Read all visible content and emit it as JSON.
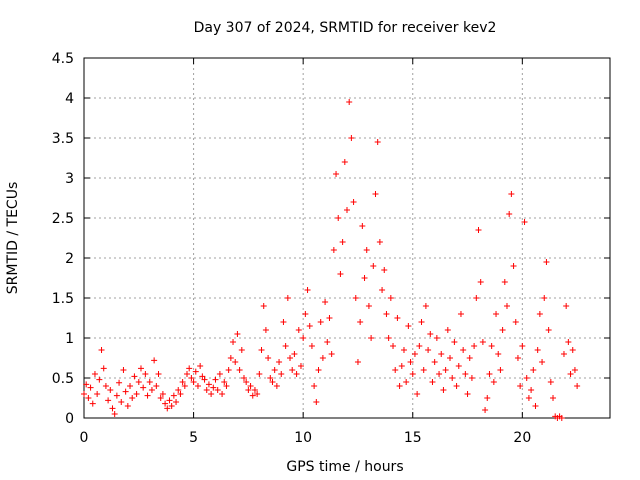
{
  "chart_data": {
    "type": "scatter",
    "title": "Day 307 of 2024, SRMTID for receiver kev2",
    "xlabel": "GPS time / hours",
    "ylabel": "SRMTID / TECUs",
    "xlim": [
      0,
      24
    ],
    "ylim": [
      0,
      4.5
    ],
    "xticks": [
      "0",
      "5",
      "10",
      "15",
      "20"
    ],
    "yticks": [
      "0",
      "0.5",
      "1",
      "1.5",
      "2",
      "2.5",
      "3",
      "3.5",
      "4",
      "4.5"
    ],
    "grid": true,
    "marker": "+",
    "color": "#ff0000",
    "series": [
      {
        "name": "SRMTID",
        "points": [
          [
            0.0,
            0.3
          ],
          [
            0.1,
            0.42
          ],
          [
            0.2,
            0.25
          ],
          [
            0.3,
            0.38
          ],
          [
            0.4,
            0.18
          ],
          [
            0.5,
            0.55
          ],
          [
            0.6,
            0.3
          ],
          [
            0.7,
            0.48
          ],
          [
            0.8,
            0.85
          ],
          [
            0.9,
            0.62
          ],
          [
            1.0,
            0.4
          ],
          [
            1.1,
            0.22
          ],
          [
            1.2,
            0.35
          ],
          [
            1.3,
            0.12
          ],
          [
            1.4,
            0.05
          ],
          [
            1.5,
            0.28
          ],
          [
            1.6,
            0.44
          ],
          [
            1.7,
            0.2
          ],
          [
            1.8,
            0.6
          ],
          [
            1.9,
            0.33
          ],
          [
            2.0,
            0.15
          ],
          [
            2.1,
            0.4
          ],
          [
            2.2,
            0.25
          ],
          [
            2.3,
            0.52
          ],
          [
            2.4,
            0.3
          ],
          [
            2.5,
            0.45
          ],
          [
            2.6,
            0.62
          ],
          [
            2.7,
            0.38
          ],
          [
            2.8,
            0.55
          ],
          [
            2.9,
            0.28
          ],
          [
            3.0,
            0.45
          ],
          [
            3.1,
            0.35
          ],
          [
            3.2,
            0.72
          ],
          [
            3.3,
            0.4
          ],
          [
            3.4,
            0.55
          ],
          [
            3.5,
            0.25
          ],
          [
            3.6,
            0.3
          ],
          [
            3.7,
            0.18
          ],
          [
            3.8,
            0.12
          ],
          [
            3.9,
            0.22
          ],
          [
            4.0,
            0.15
          ],
          [
            4.1,
            0.28
          ],
          [
            4.2,
            0.2
          ],
          [
            4.3,
            0.35
          ],
          [
            4.4,
            0.3
          ],
          [
            4.5,
            0.45
          ],
          [
            4.6,
            0.4
          ],
          [
            4.7,
            0.55
          ],
          [
            4.8,
            0.62
          ],
          [
            4.9,
            0.5
          ],
          [
            5.0,
            0.45
          ],
          [
            5.1,
            0.58
          ],
          [
            5.2,
            0.4
          ],
          [
            5.3,
            0.65
          ],
          [
            5.4,
            0.52
          ],
          [
            5.5,
            0.48
          ],
          [
            5.6,
            0.35
          ],
          [
            5.7,
            0.42
          ],
          [
            5.8,
            0.3
          ],
          [
            5.9,
            0.38
          ],
          [
            6.0,
            0.48
          ],
          [
            6.1,
            0.35
          ],
          [
            6.2,
            0.55
          ],
          [
            6.3,
            0.3
          ],
          [
            6.4,
            0.45
          ],
          [
            6.5,
            0.4
          ],
          [
            6.6,
            0.6
          ],
          [
            6.7,
            0.75
          ],
          [
            6.8,
            0.95
          ],
          [
            6.9,
            0.7
          ],
          [
            7.0,
            1.05
          ],
          [
            7.1,
            0.6
          ],
          [
            7.2,
            0.85
          ],
          [
            7.3,
            0.5
          ],
          [
            7.4,
            0.45
          ],
          [
            7.5,
            0.35
          ],
          [
            7.6,
            0.4
          ],
          [
            7.7,
            0.28
          ],
          [
            7.8,
            0.35
          ],
          [
            7.9,
            0.3
          ],
          [
            8.0,
            0.55
          ],
          [
            8.1,
            0.85
          ],
          [
            8.2,
            1.4
          ],
          [
            8.3,
            1.1
          ],
          [
            8.4,
            0.75
          ],
          [
            8.5,
            0.5
          ],
          [
            8.6,
            0.45
          ],
          [
            8.7,
            0.6
          ],
          [
            8.8,
            0.4
          ],
          [
            8.9,
            0.7
          ],
          [
            9.0,
            0.55
          ],
          [
            9.1,
            1.2
          ],
          [
            9.2,
            0.9
          ],
          [
            9.3,
            1.5
          ],
          [
            9.4,
            0.75
          ],
          [
            9.5,
            0.6
          ],
          [
            9.6,
            0.8
          ],
          [
            9.7,
            0.55
          ],
          [
            9.8,
            1.1
          ],
          [
            9.9,
            0.65
          ],
          [
            10.0,
            1.0
          ],
          [
            10.1,
            1.3
          ],
          [
            10.2,
            1.6
          ],
          [
            10.3,
            1.15
          ],
          [
            10.4,
            0.9
          ],
          [
            10.5,
            0.4
          ],
          [
            10.6,
            0.2
          ],
          [
            10.7,
            0.6
          ],
          [
            10.8,
            1.2
          ],
          [
            10.9,
            0.75
          ],
          [
            11.0,
            1.45
          ],
          [
            11.1,
            0.95
          ],
          [
            11.2,
            1.25
          ],
          [
            11.3,
            0.8
          ],
          [
            11.4,
            2.1
          ],
          [
            11.5,
            3.05
          ],
          [
            11.6,
            2.5
          ],
          [
            11.7,
            1.8
          ],
          [
            11.8,
            2.2
          ],
          [
            11.9,
            3.2
          ],
          [
            12.0,
            2.6
          ],
          [
            12.1,
            3.95
          ],
          [
            12.2,
            3.5
          ],
          [
            12.3,
            2.7
          ],
          [
            12.4,
            1.5
          ],
          [
            12.5,
            0.7
          ],
          [
            12.6,
            1.2
          ],
          [
            12.7,
            2.4
          ],
          [
            12.8,
            1.75
          ],
          [
            12.9,
            2.1
          ],
          [
            13.0,
            1.4
          ],
          [
            13.1,
            1.0
          ],
          [
            13.2,
            1.9
          ],
          [
            13.3,
            2.8
          ],
          [
            13.4,
            3.45
          ],
          [
            13.5,
            2.2
          ],
          [
            13.6,
            1.6
          ],
          [
            13.7,
            1.85
          ],
          [
            13.8,
            1.3
          ],
          [
            13.9,
            1.0
          ],
          [
            14.0,
            1.5
          ],
          [
            14.1,
            0.9
          ],
          [
            14.2,
            0.6
          ],
          [
            14.3,
            1.25
          ],
          [
            14.4,
            0.4
          ],
          [
            14.5,
            0.65
          ],
          [
            14.6,
            0.85
          ],
          [
            14.7,
            0.45
          ],
          [
            14.8,
            1.15
          ],
          [
            14.9,
            0.7
          ],
          [
            15.0,
            0.55
          ],
          [
            15.1,
            0.8
          ],
          [
            15.2,
            0.3
          ],
          [
            15.3,
            0.9
          ],
          [
            15.4,
            1.2
          ],
          [
            15.5,
            0.6
          ],
          [
            15.6,
            1.4
          ],
          [
            15.7,
            0.85
          ],
          [
            15.8,
            1.05
          ],
          [
            15.9,
            0.45
          ],
          [
            16.0,
            0.7
          ],
          [
            16.1,
            1.0
          ],
          [
            16.2,
            0.55
          ],
          [
            16.3,
            0.8
          ],
          [
            16.4,
            0.35
          ],
          [
            16.5,
            0.6
          ],
          [
            16.6,
            1.1
          ],
          [
            16.7,
            0.75
          ],
          [
            16.8,
            0.5
          ],
          [
            16.9,
            0.95
          ],
          [
            17.0,
            0.4
          ],
          [
            17.1,
            0.65
          ],
          [
            17.2,
            1.3
          ],
          [
            17.3,
            0.85
          ],
          [
            17.4,
            0.55
          ],
          [
            17.5,
            0.3
          ],
          [
            17.6,
            0.75
          ],
          [
            17.7,
            0.5
          ],
          [
            17.8,
            0.9
          ],
          [
            17.9,
            1.5
          ],
          [
            18.0,
            2.35
          ],
          [
            18.1,
            1.7
          ],
          [
            18.2,
            0.95
          ],
          [
            18.3,
            0.1
          ],
          [
            18.4,
            0.25
          ],
          [
            18.5,
            0.55
          ],
          [
            18.6,
            0.9
          ],
          [
            18.7,
            0.45
          ],
          [
            18.8,
            1.3
          ],
          [
            18.9,
            0.8
          ],
          [
            19.0,
            0.6
          ],
          [
            19.1,
            1.1
          ],
          [
            19.2,
            1.7
          ],
          [
            19.3,
            1.4
          ],
          [
            19.4,
            2.55
          ],
          [
            19.5,
            2.8
          ],
          [
            19.6,
            1.9
          ],
          [
            19.7,
            1.2
          ],
          [
            19.8,
            0.75
          ],
          [
            19.9,
            0.4
          ],
          [
            20.0,
            0.9
          ],
          [
            20.1,
            2.45
          ],
          [
            20.2,
            0.5
          ],
          [
            20.3,
            0.25
          ],
          [
            20.4,
            0.35
          ],
          [
            20.5,
            0.6
          ],
          [
            20.6,
            0.15
          ],
          [
            20.7,
            0.85
          ],
          [
            20.8,
            1.3
          ],
          [
            20.9,
            0.7
          ],
          [
            21.0,
            1.5
          ],
          [
            21.1,
            1.95
          ],
          [
            21.2,
            1.1
          ],
          [
            21.3,
            0.45
          ],
          [
            21.4,
            0.25
          ],
          [
            21.5,
            0.02
          ],
          [
            21.6,
            0.0
          ],
          [
            21.7,
            0.02
          ],
          [
            21.8,
            0.0
          ],
          [
            21.9,
            0.8
          ],
          [
            22.0,
            1.4
          ],
          [
            22.1,
            0.95
          ],
          [
            22.2,
            0.55
          ],
          [
            22.3,
            0.85
          ],
          [
            22.4,
            0.6
          ],
          [
            22.5,
            0.4
          ]
        ]
      }
    ]
  }
}
